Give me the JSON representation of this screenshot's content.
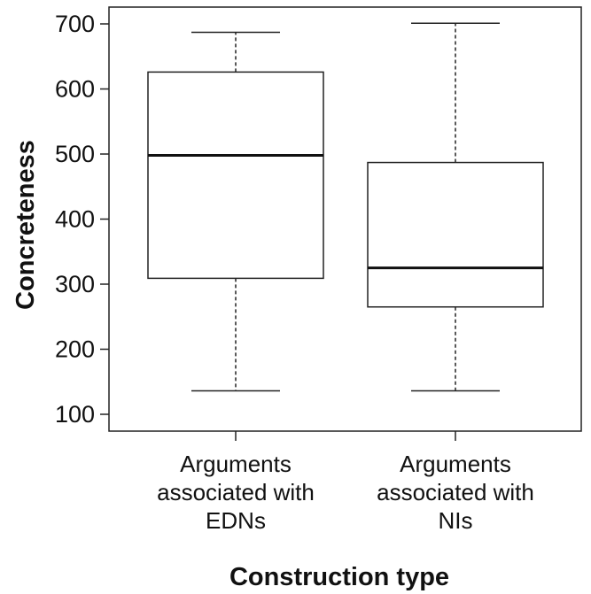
{
  "chart_data": {
    "type": "boxplot",
    "title": "",
    "xlabel": "Construction type",
    "ylabel": "Concreteness",
    "ylim": [
      90,
      710
    ],
    "yticks": [
      100,
      200,
      300,
      400,
      500,
      600,
      700
    ],
    "grid": false,
    "categories": [
      {
        "lines": [
          "Arguments",
          "associated with",
          "EDNs"
        ]
      },
      {
        "lines": [
          "Arguments",
          "associated with",
          "NIs"
        ]
      }
    ],
    "boxes": [
      {
        "min": 136,
        "q1": 309,
        "median": 498,
        "q3": 626,
        "max": 687
      },
      {
        "min": 136,
        "q1": 265,
        "median": 325,
        "q3": 487,
        "max": 701
      }
    ]
  }
}
